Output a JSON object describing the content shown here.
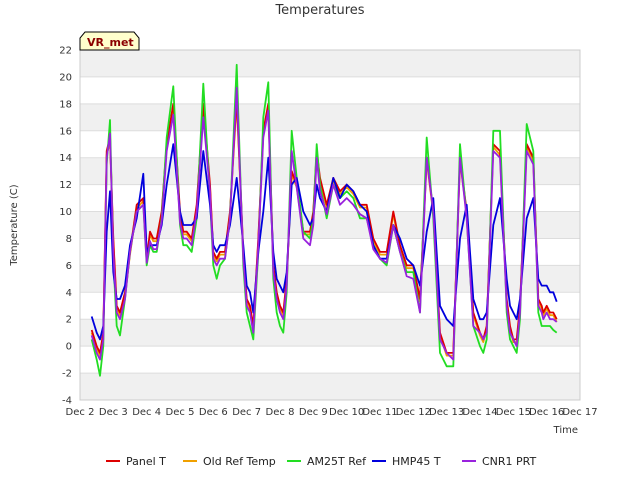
{
  "chart_data": {
    "type": "line",
    "title": "Temperatures",
    "xlabel": "Time",
    "ylabel": "Temperature (C)",
    "badge": "VR_met",
    "ylim": [
      -4,
      22
    ],
    "yticks": [
      -4,
      -2,
      0,
      2,
      4,
      6,
      8,
      10,
      12,
      14,
      16,
      18,
      20,
      22
    ],
    "xlim": [
      2,
      17
    ],
    "xticks": [
      2,
      3,
      4,
      5,
      6,
      7,
      8,
      9,
      10,
      11,
      12,
      13,
      14,
      15,
      16,
      17
    ],
    "xtick_labels": [
      "Dec 2",
      "Dec 3",
      "Dec 4",
      "Dec 5",
      "Dec 6",
      "Dec 7",
      "Dec 8",
      "Dec 9",
      "Dec 10",
      "Dec 11",
      "Dec 12",
      "Dec 13",
      "Dec 14",
      "Dec 15",
      "Dec 16",
      "Dec 17"
    ],
    "grid": true,
    "legend_position": "bottom-center",
    "series": [
      {
        "name": "Panel T",
        "color": "#dd0000",
        "x": [
          2.35,
          2.5,
          2.6,
          2.7,
          2.8,
          2.9,
          3.0,
          3.1,
          3.2,
          3.35,
          3.5,
          3.7,
          3.9,
          4.0,
          4.1,
          4.2,
          4.3,
          4.45,
          4.6,
          4.8,
          5.0,
          5.1,
          5.2,
          5.35,
          5.5,
          5.7,
          5.9,
          6.0,
          6.1,
          6.2,
          6.35,
          6.5,
          6.7,
          6.9,
          7.0,
          7.1,
          7.2,
          7.35,
          7.5,
          7.65,
          7.8,
          7.9,
          8.0,
          8.1,
          8.2,
          8.35,
          8.5,
          8.7,
          8.9,
          9.0,
          9.1,
          9.2,
          9.4,
          9.6,
          9.8,
          10.0,
          10.2,
          10.4,
          10.6,
          10.8,
          11.0,
          11.2,
          11.4,
          11.6,
          11.8,
          12.0,
          12.2,
          12.4,
          12.6,
          12.8,
          13.0,
          13.2,
          13.4,
          13.6,
          13.8,
          14.0,
          14.1,
          14.2,
          14.4,
          14.6,
          14.8,
          14.9,
          15.0,
          15.1,
          15.2,
          15.4,
          15.6,
          15.75,
          15.85,
          15.9,
          16.0,
          16.1,
          16.2,
          16.3
        ],
        "y": [
          1.2,
          0.0,
          -0.5,
          1.0,
          14.5,
          15.5,
          8.0,
          3.0,
          2.5,
          4.0,
          7.0,
          10.5,
          11.0,
          6.5,
          8.5,
          8.0,
          8.0,
          10.0,
          15.0,
          18.0,
          10.0,
          8.5,
          8.5,
          8.0,
          10.5,
          18.0,
          12.0,
          7.0,
          6.5,
          7.0,
          7.0,
          10.0,
          18.5,
          7.0,
          3.5,
          3.0,
          1.5,
          8.0,
          16.0,
          18.0,
          6.0,
          4.0,
          3.0,
          2.5,
          5.0,
          13.0,
          12.0,
          8.5,
          8.5,
          10.0,
          14.5,
          12.5,
          10.5,
          12.5,
          11.5,
          12.0,
          11.5,
          10.5,
          10.5,
          8.0,
          7.0,
          7.0,
          10.0,
          7.5,
          6.0,
          6.0,
          3.5,
          14.0,
          10.0,
          1.0,
          -0.5,
          -0.5,
          14.0,
          10.0,
          2.5,
          1.0,
          0.5,
          1.5,
          15.0,
          14.5,
          3.5,
          1.5,
          0.5,
          0.5,
          3.0,
          15.0,
          14.0,
          3.5,
          3.0,
          2.5,
          3.0,
          2.5,
          2.5,
          2.0
        ]
      },
      {
        "name": "Old Ref Temp",
        "color": "#f0a000",
        "x": [
          2.35,
          2.5,
          2.6,
          2.7,
          2.8,
          2.9,
          3.0,
          3.1,
          3.2,
          3.35,
          3.5,
          3.7,
          3.9,
          4.0,
          4.1,
          4.2,
          4.3,
          4.45,
          4.6,
          4.8,
          5.0,
          5.1,
          5.2,
          5.35,
          5.5,
          5.7,
          5.9,
          6.0,
          6.1,
          6.2,
          6.35,
          6.5,
          6.7,
          6.9,
          7.0,
          7.1,
          7.2,
          7.35,
          7.5,
          7.65,
          7.8,
          7.9,
          8.0,
          8.1,
          8.2,
          8.35,
          8.5,
          8.7,
          8.9,
          9.0,
          9.1,
          9.2,
          9.4,
          9.6,
          9.8,
          10.0,
          10.2,
          10.4,
          10.6,
          10.8,
          11.0,
          11.2,
          11.4,
          11.6,
          11.8,
          12.0,
          12.2,
          12.4,
          12.6,
          12.8,
          13.0,
          13.2,
          13.4,
          13.6,
          13.8,
          14.0,
          14.1,
          14.2,
          14.4,
          14.6,
          14.8,
          14.9,
          15.0,
          15.1,
          15.2,
          15.4,
          15.6,
          15.75,
          15.85,
          15.9,
          16.0,
          16.1,
          16.2,
          16.3
        ],
        "y": [
          1.0,
          -0.2,
          -0.7,
          0.8,
          14.2,
          15.2,
          7.8,
          2.8,
          2.3,
          3.8,
          6.8,
          10.2,
          10.8,
          6.3,
          8.3,
          7.8,
          7.8,
          9.8,
          14.8,
          17.6,
          9.8,
          8.3,
          8.3,
          7.8,
          10.3,
          17.6,
          11.8,
          6.8,
          6.3,
          6.8,
          6.8,
          9.8,
          18.2,
          6.8,
          3.3,
          2.8,
          1.3,
          7.8,
          15.7,
          17.6,
          5.8,
          3.8,
          2.8,
          2.3,
          4.8,
          12.8,
          11.8,
          8.3,
          8.3,
          9.8,
          14.2,
          12.3,
          10.3,
          12.3,
          11.3,
          11.8,
          11.3,
          10.3,
          10.3,
          7.8,
          6.8,
          6.8,
          9.8,
          7.3,
          5.8,
          5.8,
          3.3,
          13.8,
          9.8,
          0.8,
          -0.7,
          -0.7,
          13.8,
          9.8,
          2.3,
          0.8,
          0.3,
          1.3,
          14.8,
          14.2,
          3.3,
          1.3,
          0.3,
          0.3,
          2.8,
          14.8,
          13.8,
          3.3,
          2.8,
          2.3,
          2.8,
          2.3,
          2.3,
          1.8
        ]
      },
      {
        "name": "AM25T Ref",
        "color": "#22dd22",
        "x": [
          2.35,
          2.5,
          2.6,
          2.7,
          2.8,
          2.9,
          3.0,
          3.1,
          3.2,
          3.35,
          3.5,
          3.7,
          3.9,
          4.0,
          4.1,
          4.2,
          4.3,
          4.45,
          4.6,
          4.8,
          5.0,
          5.1,
          5.2,
          5.35,
          5.5,
          5.7,
          5.9,
          6.0,
          6.1,
          6.2,
          6.35,
          6.5,
          6.7,
          6.9,
          7.0,
          7.1,
          7.2,
          7.35,
          7.5,
          7.65,
          7.8,
          7.9,
          8.0,
          8.1,
          8.2,
          8.35,
          8.5,
          8.7,
          8.9,
          9.0,
          9.1,
          9.2,
          9.4,
          9.6,
          9.8,
          10.0,
          10.2,
          10.4,
          10.6,
          10.8,
          11.0,
          11.2,
          11.4,
          11.6,
          11.8,
          12.0,
          12.2,
          12.4,
          12.6,
          12.8,
          13.0,
          13.2,
          13.4,
          13.6,
          13.8,
          14.0,
          14.1,
          14.2,
          14.4,
          14.6,
          14.8,
          14.9,
          15.0,
          15.1,
          15.2,
          15.4,
          15.6,
          15.75,
          15.85,
          15.9,
          16.0,
          16.1,
          16.2,
          16.3
        ],
        "y": [
          0.5,
          -1.0,
          -2.2,
          0.0,
          13.5,
          16.8,
          6.5,
          1.5,
          0.8,
          3.5,
          7.0,
          10.0,
          10.5,
          6.0,
          7.5,
          7.0,
          7.0,
          9.5,
          15.5,
          19.3,
          9.0,
          7.5,
          7.5,
          7.0,
          9.5,
          19.5,
          11.0,
          6.0,
          5.0,
          6.0,
          6.5,
          9.5,
          20.9,
          6.0,
          2.5,
          1.5,
          0.5,
          7.0,
          17.0,
          19.6,
          5.0,
          2.5,
          1.5,
          1.0,
          4.0,
          16.0,
          12.5,
          8.5,
          8.0,
          9.5,
          15.0,
          12.0,
          9.5,
          12.0,
          11.0,
          11.5,
          11.0,
          9.5,
          9.5,
          7.5,
          6.5,
          6.0,
          9.0,
          7.0,
          5.5,
          5.5,
          2.5,
          15.5,
          9.5,
          -0.5,
          -1.5,
          -1.5,
          15.0,
          9.5,
          1.5,
          0.0,
          -0.5,
          0.5,
          16.0,
          16.0,
          2.5,
          0.5,
          0.0,
          -0.5,
          2.0,
          16.5,
          14.5,
          2.5,
          1.5,
          1.5,
          1.5,
          1.5,
          1.2,
          1.0
        ]
      },
      {
        "name": "HMP45 T",
        "color": "#0000dd",
        "x": [
          2.35,
          2.5,
          2.6,
          2.7,
          2.8,
          2.9,
          3.0,
          3.1,
          3.2,
          3.35,
          3.5,
          3.7,
          3.9,
          4.0,
          4.1,
          4.2,
          4.3,
          4.45,
          4.6,
          4.8,
          5.0,
          5.1,
          5.2,
          5.35,
          5.5,
          5.7,
          5.9,
          6.0,
          6.1,
          6.2,
          6.35,
          6.5,
          6.7,
          6.9,
          7.0,
          7.1,
          7.2,
          7.35,
          7.5,
          7.65,
          7.8,
          7.9,
          8.0,
          8.1,
          8.2,
          8.35,
          8.5,
          8.7,
          8.9,
          9.0,
          9.1,
          9.2,
          9.4,
          9.6,
          9.8,
          10.0,
          10.2,
          10.4,
          10.6,
          10.8,
          11.0,
          11.2,
          11.4,
          11.6,
          11.8,
          12.0,
          12.2,
          12.4,
          12.6,
          12.8,
          13.0,
          13.2,
          13.4,
          13.6,
          13.8,
          14.0,
          14.1,
          14.2,
          14.4,
          14.6,
          14.8,
          14.9,
          15.0,
          15.1,
          15.2,
          15.4,
          15.6,
          15.75,
          15.85,
          15.9,
          16.0,
          16.1,
          16.2,
          16.3
        ],
        "y": [
          2.2,
          1.0,
          0.5,
          1.5,
          8.5,
          11.5,
          5.5,
          3.5,
          3.5,
          4.5,
          7.5,
          9.5,
          12.8,
          7.0,
          7.5,
          7.5,
          7.5,
          9.0,
          12.0,
          15.0,
          10.0,
          9.0,
          9.0,
          9.0,
          9.5,
          14.5,
          10.5,
          7.5,
          7.0,
          7.5,
          7.5,
          9.0,
          12.5,
          7.5,
          4.5,
          4.0,
          2.5,
          7.0,
          10.0,
          14.0,
          7.0,
          5.0,
          4.5,
          4.0,
          5.5,
          12.0,
          12.5,
          10.0,
          9.0,
          9.5,
          12.0,
          11.0,
          10.0,
          12.5,
          11.0,
          12.0,
          11.5,
          10.5,
          10.0,
          7.5,
          6.5,
          6.5,
          9.0,
          8.0,
          6.5,
          6.0,
          4.5,
          8.5,
          11.0,
          3.0,
          2.0,
          1.5,
          8.0,
          10.5,
          3.5,
          2.0,
          2.0,
          2.5,
          9.0,
          11.0,
          5.0,
          3.0,
          2.5,
          2.0,
          3.5,
          9.5,
          11.0,
          5.0,
          4.5,
          4.5,
          4.5,
          4.0,
          4.0,
          3.3
        ]
      },
      {
        "name": "CNR1 PRT",
        "color": "#9922dd",
        "x": [
          2.35,
          2.5,
          2.6,
          2.7,
          2.8,
          2.9,
          3.0,
          3.1,
          3.2,
          3.35,
          3.5,
          3.7,
          3.9,
          4.0,
          4.1,
          4.2,
          4.3,
          4.45,
          4.6,
          4.8,
          5.0,
          5.1,
          5.2,
          5.35,
          5.5,
          5.7,
          5.9,
          6.0,
          6.1,
          6.2,
          6.35,
          6.5,
          6.7,
          6.9,
          7.0,
          7.1,
          7.2,
          7.35,
          7.5,
          7.65,
          7.8,
          7.9,
          8.0,
          8.1,
          8.2,
          8.35,
          8.5,
          8.7,
          8.9,
          9.0,
          9.1,
          9.2,
          9.4,
          9.6,
          9.8,
          10.0,
          10.2,
          10.4,
          10.6,
          10.8,
          11.0,
          11.2,
          11.4,
          11.6,
          11.8,
          12.0,
          12.2,
          12.4,
          12.6,
          12.8,
          13.0,
          13.2,
          13.4,
          13.6,
          13.8,
          14.0,
          14.1,
          14.2,
          14.4,
          14.6,
          14.8,
          14.9,
          15.0,
          15.1,
          15.2,
          15.4,
          15.6,
          15.75,
          15.85,
          15.9,
          16.0,
          16.1,
          16.2,
          16.3
        ],
        "y": [
          0.8,
          -0.5,
          -1.0,
          0.5,
          14.0,
          15.8,
          7.0,
          2.5,
          2.0,
          3.5,
          7.0,
          10.0,
          10.5,
          6.2,
          7.8,
          7.2,
          7.2,
          9.3,
          14.5,
          17.2,
          9.2,
          8.0,
          8.0,
          7.5,
          10.0,
          17.0,
          11.5,
          6.5,
          6.0,
          6.5,
          6.5,
          9.5,
          19.2,
          6.5,
          3.0,
          2.5,
          1.0,
          7.5,
          15.5,
          17.5,
          5.5,
          3.5,
          2.5,
          2.0,
          4.5,
          14.5,
          11.8,
          8.0,
          7.5,
          9.0,
          14.0,
          11.5,
          9.8,
          12.0,
          10.5,
          11.0,
          10.5,
          9.8,
          9.5,
          7.2,
          6.5,
          6.2,
          9.0,
          7.0,
          5.2,
          5.0,
          2.5,
          14.0,
          10.0,
          0.5,
          -0.5,
          -1.0,
          14.0,
          9.5,
          1.5,
          1.0,
          0.5,
          1.0,
          14.5,
          14.0,
          3.0,
          1.0,
          0.5,
          0.0,
          2.5,
          14.5,
          13.5,
          3.0,
          2.5,
          2.0,
          2.5,
          2.0,
          2.0,
          1.8
        ]
      }
    ]
  }
}
